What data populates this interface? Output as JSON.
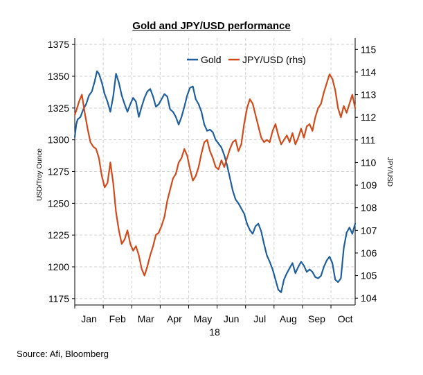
{
  "chart_data": {
    "type": "line",
    "title": "Gold and JPY/USD performance",
    "xlabel": "18",
    "ylabel": "USD/Troy Ounce",
    "ylabel_right": "JPY/USD",
    "x_tick_labels": [
      "Jan",
      "Feb",
      "Mar",
      "Apr",
      "May",
      "Jun",
      "Jul",
      "Aug",
      "Sep",
      "Oct"
    ],
    "x_range": [
      0,
      9.85
    ],
    "ylim": [
      1170,
      1380
    ],
    "yticks": [
      1175,
      1200,
      1225,
      1250,
      1275,
      1300,
      1325,
      1350,
      1375
    ],
    "ylim_right": [
      103.7,
      115.5
    ],
    "yticks_right": [
      104,
      105,
      106,
      107,
      108,
      109,
      110,
      111,
      112,
      113,
      114,
      115
    ],
    "grid": true,
    "legend_position": "top-right",
    "series": [
      {
        "name": "Gold",
        "axis": "left",
        "color": "#1f5f9e",
        "x": [
          0.0,
          0.05,
          0.1,
          0.2,
          0.3,
          0.4,
          0.5,
          0.6,
          0.7,
          0.78,
          0.85,
          0.95,
          1.05,
          1.15,
          1.25,
          1.35,
          1.45,
          1.55,
          1.65,
          1.75,
          1.85,
          1.95,
          2.05,
          2.15,
          2.25,
          2.35,
          2.45,
          2.55,
          2.65,
          2.75,
          2.85,
          2.95,
          3.05,
          3.15,
          3.25,
          3.35,
          3.45,
          3.55,
          3.65,
          3.75,
          3.85,
          3.95,
          4.05,
          4.15,
          4.25,
          4.35,
          4.45,
          4.55,
          4.65,
          4.75,
          4.85,
          4.95,
          5.05,
          5.15,
          5.25,
          5.35,
          5.45,
          5.55,
          5.65,
          5.75,
          5.85,
          5.95,
          6.05,
          6.15,
          6.25,
          6.35,
          6.45,
          6.55,
          6.65,
          6.75,
          6.85,
          6.95,
          7.05,
          7.15,
          7.25,
          7.35,
          7.45,
          7.55,
          7.65,
          7.75,
          7.85,
          7.95,
          8.05,
          8.15,
          8.25,
          8.35,
          8.45,
          8.55,
          8.65,
          8.75,
          8.85,
          8.95,
          9.05,
          9.15,
          9.25,
          9.35,
          9.45,
          9.55,
          9.65,
          9.75,
          9.85
        ],
        "values": [
          1302,
          1312,
          1316,
          1318,
          1324,
          1328,
          1335,
          1338,
          1346,
          1354,
          1352,
          1345,
          1336,
          1330,
          1322,
          1334,
          1352,
          1345,
          1335,
          1328,
          1322,
          1328,
          1333,
          1330,
          1318,
          1326,
          1333,
          1338,
          1340,
          1334,
          1326,
          1328,
          1332,
          1336,
          1334,
          1324,
          1322,
          1318,
          1312,
          1318,
          1326,
          1335,
          1341,
          1342,
          1332,
          1328,
          1322,
          1312,
          1307,
          1308,
          1306,
          1300,
          1297,
          1294,
          1288,
          1280,
          1270,
          1260,
          1253,
          1250,
          1246,
          1242,
          1234,
          1229,
          1226,
          1232,
          1234,
          1228,
          1218,
          1209,
          1204,
          1198,
          1190,
          1182,
          1180,
          1190,
          1195,
          1199,
          1203,
          1195,
          1200,
          1204,
          1201,
          1196,
          1198,
          1196,
          1192,
          1191,
          1193,
          1200,
          1205,
          1208,
          1203,
          1190,
          1188,
          1191,
          1215,
          1227,
          1231,
          1226,
          1234
        ]
      },
      {
        "name": "JPY/USD (rhs)",
        "axis": "right",
        "color": "#d14a1a",
        "x": [
          0.0,
          0.08,
          0.15,
          0.25,
          0.35,
          0.45,
          0.55,
          0.65,
          0.75,
          0.85,
          0.95,
          1.05,
          1.15,
          1.25,
          1.35,
          1.45,
          1.55,
          1.65,
          1.75,
          1.85,
          1.95,
          2.05,
          2.15,
          2.25,
          2.35,
          2.45,
          2.55,
          2.65,
          2.75,
          2.85,
          2.95,
          3.05,
          3.15,
          3.25,
          3.35,
          3.45,
          3.55,
          3.65,
          3.75,
          3.85,
          3.95,
          4.05,
          4.15,
          4.25,
          4.35,
          4.45,
          4.55,
          4.65,
          4.75,
          4.85,
          4.95,
          5.05,
          5.15,
          5.25,
          5.35,
          5.45,
          5.55,
          5.65,
          5.75,
          5.85,
          5.95,
          6.05,
          6.15,
          6.25,
          6.35,
          6.45,
          6.55,
          6.65,
          6.75,
          6.85,
          6.95,
          7.05,
          7.15,
          7.25,
          7.35,
          7.45,
          7.55,
          7.65,
          7.75,
          7.85,
          7.95,
          8.05,
          8.15,
          8.25,
          8.35,
          8.45,
          8.55,
          8.65,
          8.75,
          8.85,
          8.95,
          9.05,
          9.15,
          9.25,
          9.35,
          9.45,
          9.55,
          9.65,
          9.75,
          9.85
        ],
        "values": [
          112.1,
          112.4,
          112.7,
          113.0,
          112.2,
          111.5,
          110.9,
          110.7,
          110.6,
          110.2,
          109.4,
          108.9,
          109.1,
          110.0,
          109.1,
          107.8,
          107.0,
          106.4,
          106.6,
          107.0,
          106.4,
          106.1,
          106.3,
          105.9,
          105.3,
          105.0,
          105.4,
          105.9,
          106.3,
          106.8,
          106.9,
          107.2,
          107.6,
          108.3,
          108.8,
          109.3,
          109.5,
          110.0,
          110.2,
          110.6,
          110.3,
          109.7,
          109.2,
          109.4,
          109.8,
          110.4,
          110.9,
          111.0,
          110.5,
          110.2,
          109.8,
          109.7,
          110.1,
          109.8,
          110.2,
          110.6,
          110.9,
          111.0,
          110.5,
          110.8,
          111.7,
          112.4,
          112.8,
          112.6,
          112.1,
          111.6,
          111.1,
          110.9,
          111.0,
          110.9,
          111.4,
          111.7,
          111.2,
          110.8,
          111.0,
          111.2,
          110.9,
          111.3,
          110.8,
          111.1,
          111.5,
          111.1,
          111.6,
          111.7,
          111.4,
          112.0,
          112.4,
          112.6,
          113.1,
          113.5,
          113.9,
          113.7,
          113.2,
          112.4,
          112.0,
          112.5,
          112.2,
          112.6,
          113.0,
          112.4
        ]
      }
    ]
  },
  "source": "Source: Afi, Bloomberg"
}
